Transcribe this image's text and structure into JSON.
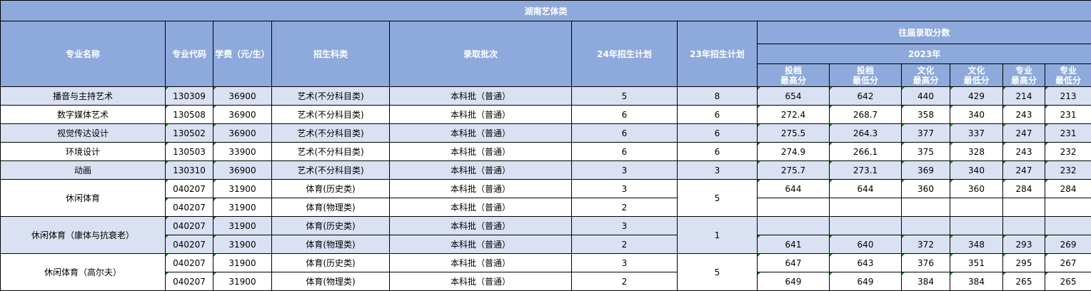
{
  "title": "湖南艺体类",
  "headers": {
    "name": "专业名称",
    "code": "专业代码",
    "fee": "学费（元/生）",
    "category": "招生科类",
    "batch": "录取批次",
    "plan24": "24年招生计划",
    "plan23": "23年招生计划",
    "history": "往届录取分数",
    "year": "2023年",
    "score_cols": [
      "投档\n最高分",
      "投档\n最低分",
      "文化\n最高分",
      "文化\n最低分",
      "专业\n最高分",
      "专业\n最低分"
    ]
  },
  "colors": {
    "header_bg": "#8EA9DB",
    "shade_bg": "#D9E1F2",
    "marker": "#1a8a1a"
  },
  "groups": [
    {
      "name": "播音与主持艺术",
      "plan23": "8",
      "entries": [
        {
          "code": "130309",
          "fee": "36900",
          "category": "艺术(不分科目类)",
          "batch": "本科批（普通）",
          "plan24": "5",
          "scores": [
            "654",
            "642",
            "440",
            "429",
            "214",
            "213"
          ]
        }
      ]
    },
    {
      "name": "数字媒体艺术",
      "plan23": "6",
      "entries": [
        {
          "code": "130508",
          "fee": "36900",
          "category": "艺术(不分科目类)",
          "batch": "本科批（普通）",
          "plan24": "6",
          "scores": [
            "272.4",
            "268.7",
            "358",
            "340",
            "243",
            "231"
          ]
        }
      ]
    },
    {
      "name": "视觉传达设计",
      "plan23": "6",
      "entries": [
        {
          "code": "130502",
          "fee": "36900",
          "category": "艺术(不分科目类)",
          "batch": "本科批（普通）",
          "plan24": "6",
          "scores": [
            "275.5",
            "264.3",
            "377",
            "337",
            "247",
            "231"
          ]
        }
      ]
    },
    {
      "name": "环境设计",
      "plan23": "6",
      "entries": [
        {
          "code": "130503",
          "fee": "33900",
          "category": "艺术(不分科目类)",
          "batch": "本科批（普通）",
          "plan24": "6",
          "scores": [
            "274.9",
            "266.1",
            "375",
            "328",
            "243",
            "232"
          ]
        }
      ]
    },
    {
      "name": "动画",
      "plan23": "3",
      "entries": [
        {
          "code": "130310",
          "fee": "36900",
          "category": "艺术(不分科目类)",
          "batch": "本科批（普通）",
          "plan24": "3",
          "scores": [
            "275.7",
            "273.1",
            "369",
            "340",
            "247",
            "232"
          ]
        }
      ]
    },
    {
      "name": "休闲体育",
      "plan23": "5",
      "entries": [
        {
          "code": "040207",
          "fee": "31900",
          "category": "体育(历史类)",
          "batch": "本科批（普通）",
          "plan24": "3",
          "scores": [
            "644",
            "644",
            "360",
            "360",
            "284",
            "284"
          ]
        },
        {
          "code": "040207",
          "fee": "31900",
          "category": "体育(物理类)",
          "batch": "本科批（普通）",
          "plan24": "2",
          "scores": [
            "",
            "",
            "",
            "",
            "",
            ""
          ]
        }
      ]
    },
    {
      "name": "休闲体育（康体与抗衰老）",
      "plan23": "1",
      "entries": [
        {
          "code": "040207",
          "fee": "31900",
          "category": "体育(历史类)",
          "batch": "本科批（普通）",
          "plan24": "3",
          "scores": [
            "",
            "",
            "",
            "",
            "",
            ""
          ]
        },
        {
          "code": "040207",
          "fee": "31900",
          "category": "体育(物理类)",
          "batch": "本科批（普通）",
          "plan24": "2",
          "scores": [
            "641",
            "640",
            "372",
            "348",
            "293",
            "269"
          ]
        }
      ]
    },
    {
      "name": "休闲体育（高尔夫）",
      "plan23": "5",
      "entries": [
        {
          "code": "040207",
          "fee": "31900",
          "category": "体育(历史类)",
          "batch": "本科批（普通）",
          "plan24": "3",
          "scores": [
            "647",
            "643",
            "376",
            "351",
            "295",
            "267"
          ]
        },
        {
          "code": "040207",
          "fee": "31900",
          "category": "体育(物理类)",
          "batch": "本科批（普通）",
          "plan24": "2",
          "scores": [
            "649",
            "649",
            "384",
            "384",
            "265",
            "265"
          ]
        }
      ]
    }
  ]
}
